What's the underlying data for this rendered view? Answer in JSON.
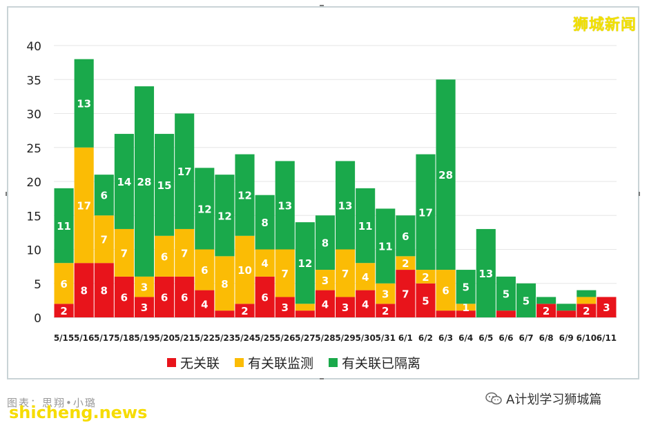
{
  "watermark_top": "狮城新闻",
  "credit": "图表：思翔•小璐",
  "site_watermark": "shicheng.news",
  "wechat_label": "A计划学习狮城篇",
  "colors": {
    "unlinked": "#e8141b",
    "monitored": "#fbbc05",
    "quarantined": "#1aa94b"
  },
  "chart_data": {
    "type": "bar",
    "stacked": true,
    "title": "",
    "xlabel": "",
    "ylabel": "",
    "ylim": [
      0,
      40
    ],
    "yticks": [
      0,
      5,
      10,
      15,
      20,
      25,
      30,
      35,
      40
    ],
    "grid": true,
    "legend_position": "bottom",
    "categories": [
      "5/15",
      "5/16",
      "5/17",
      "5/18",
      "5/19",
      "5/20",
      "5/21",
      "5/22",
      "5/23",
      "5/24",
      "5/25",
      "5/26",
      "5/27",
      "5/28",
      "5/29",
      "5/30",
      "5/31",
      "6/1",
      "6/2",
      "6/3",
      "6/4",
      "6/5",
      "6/6",
      "6/7",
      "6/8",
      "6/9",
      "6/10",
      "6/11"
    ],
    "series": [
      {
        "name": "无关联",
        "color": "#e8141b",
        "values": [
          2,
          8,
          8,
          6,
          3,
          6,
          6,
          4,
          1,
          2,
          6,
          3,
          1,
          4,
          3,
          4,
          2,
          7,
          5,
          1,
          1,
          0,
          1,
          0,
          2,
          1,
          2,
          3
        ],
        "labels": [
          "2",
          "8",
          "8",
          "6",
          "3",
          "6",
          "6",
          "4",
          "",
          "2",
          "6",
          "3",
          "",
          "4",
          "3",
          "4",
          "2",
          "7",
          "5",
          "",
          "",
          "",
          "",
          "",
          "2",
          "",
          "2",
          "3"
        ]
      },
      {
        "name": "有关联监测",
        "color": "#fbbc05",
        "values": [
          6,
          17,
          7,
          7,
          3,
          6,
          7,
          6,
          8,
          10,
          4,
          7,
          1,
          3,
          7,
          4,
          3,
          2,
          2,
          6,
          1,
          0,
          0,
          0,
          0,
          0,
          1,
          0
        ],
        "labels": [
          "6",
          "17",
          "7",
          "7",
          "3",
          "6",
          "7",
          "6",
          "8",
          "10",
          "4",
          "7",
          "",
          "3",
          "7",
          "4",
          "3",
          "2",
          "2",
          "6",
          "1",
          "",
          "",
          "",
          "",
          "",
          "",
          ""
        ]
      },
      {
        "name": "有关联已隔离",
        "color": "#1aa94b",
        "values": [
          11,
          13,
          6,
          14,
          28,
          15,
          17,
          12,
          12,
          12,
          8,
          13,
          12,
          8,
          13,
          11,
          11,
          6,
          17,
          28,
          5,
          13,
          5,
          5,
          1,
          1,
          1,
          0
        ],
        "labels": [
          "11",
          "13",
          "6",
          "14",
          "28",
          "15",
          "17",
          "12",
          "12",
          "12",
          "8",
          "13",
          "12",
          "8",
          "13",
          "11",
          "11",
          "6",
          "17",
          "28",
          "5",
          "13",
          "5",
          "5",
          "",
          "",
          "",
          ""
        ]
      }
    ]
  }
}
